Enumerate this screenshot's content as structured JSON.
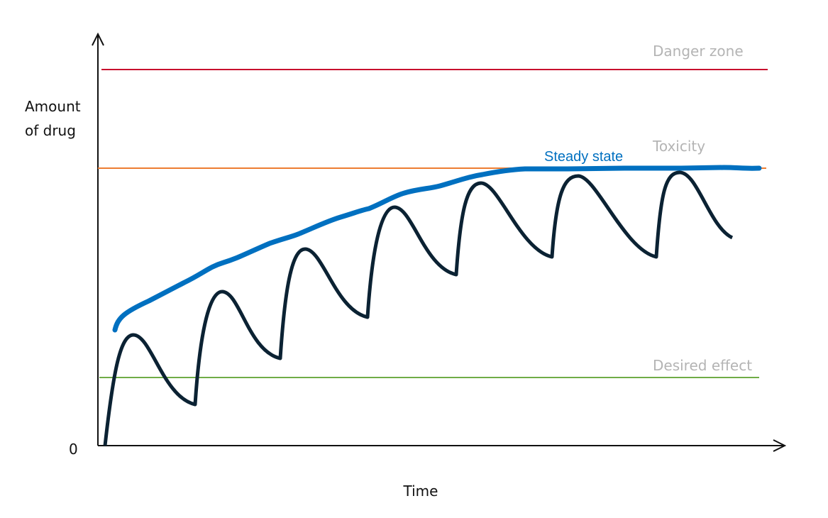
{
  "axes": {
    "y_label": [
      "Amount",
      "of drug"
    ],
    "y_origin": "0",
    "x_label": "Time"
  },
  "zones": [
    {
      "label": "Danger zone"
    },
    {
      "label": "Toxicity"
    },
    {
      "label": "Desired effect"
    }
  ],
  "curve_label": "Steady state"
}
